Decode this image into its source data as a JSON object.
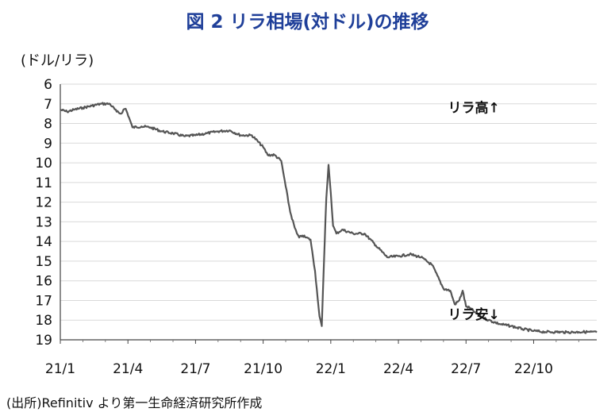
{
  "title": "図 2  リラ相場(対ドル)の推移",
  "unit_label": "(ドル/リラ)",
  "source": "(出所)Refinitiv より第一生命経済研究所作成",
  "colors": {
    "title": "#1f3f99",
    "line": "#555555",
    "grid": "#d9d9d9"
  },
  "chart_data": {
    "type": "line",
    "title": "図 2  リラ相場(対ドル)の推移",
    "ylabel": "(ドル/リラ)",
    "xlabel": "",
    "y_inverted": true,
    "ylim": [
      6,
      19
    ],
    "y_ticks": [
      "6",
      "7",
      "8",
      "9",
      "10",
      "11",
      "12",
      "13",
      "14",
      "15",
      "16",
      "17",
      "18",
      "19"
    ],
    "x_ticks": [
      "21/1",
      "21/4",
      "21/7",
      "21/10",
      "22/1",
      "22/4",
      "22/7",
      "22/10"
    ],
    "x_tick_months": [
      0,
      3,
      6,
      9,
      12,
      15,
      18,
      21
    ],
    "xlim_months": [
      0,
      23.8
    ],
    "grid": true,
    "annotations": [
      {
        "text": "リラ高↑",
        "x": 17.2,
        "y": 7.2
      },
      {
        "text": "リラ安↓",
        "x": 17.2,
        "y": 17.7
      }
    ],
    "series": [
      {
        "x": [
          0.0,
          0.3,
          0.6,
          1.0,
          1.4,
          1.8,
          2.2,
          2.5,
          2.7,
          2.8,
          2.9,
          3.05,
          3.2,
          3.6,
          4.0,
          4.5,
          5.0,
          5.5,
          6.0,
          6.5,
          7.0,
          7.5,
          8.0,
          8.5,
          9.0,
          9.2,
          9.5,
          9.8,
          10.0,
          10.2,
          10.4,
          10.5,
          10.6,
          10.75,
          10.9,
          11.1,
          11.3,
          11.5,
          11.6,
          11.7,
          11.8,
          11.9,
          12.0,
          12.1,
          12.25,
          12.5,
          13.0,
          13.5,
          14.0,
          14.5,
          15.0,
          15.5,
          16.0,
          16.5,
          17.0,
          17.3,
          17.5,
          17.7,
          17.85,
          18.0,
          18.2,
          18.4,
          18.7,
          19.0,
          19.5,
          20.0,
          20.5,
          21.0,
          21.5,
          22.0,
          22.5,
          23.0,
          23.5,
          23.8
        ],
        "y": [
          7.3,
          7.4,
          7.3,
          7.2,
          7.1,
          7.0,
          7.0,
          7.4,
          7.5,
          7.3,
          7.25,
          7.7,
          8.2,
          8.15,
          8.2,
          8.4,
          8.5,
          8.65,
          8.6,
          8.5,
          8.4,
          8.35,
          8.6,
          8.6,
          9.2,
          9.6,
          9.6,
          9.9,
          11.2,
          12.5,
          13.3,
          13.6,
          13.8,
          13.7,
          13.8,
          13.9,
          15.5,
          17.8,
          18.3,
          15.0,
          11.8,
          10.1,
          11.5,
          13.2,
          13.6,
          13.4,
          13.6,
          13.6,
          14.2,
          14.8,
          14.75,
          14.65,
          14.8,
          15.2,
          16.4,
          16.5,
          17.2,
          17.0,
          16.5,
          17.3,
          17.4,
          17.6,
          17.85,
          18.0,
          18.2,
          18.3,
          18.45,
          18.55,
          18.6,
          18.6,
          18.62,
          18.6,
          18.6,
          18.62
        ]
      }
    ]
  }
}
